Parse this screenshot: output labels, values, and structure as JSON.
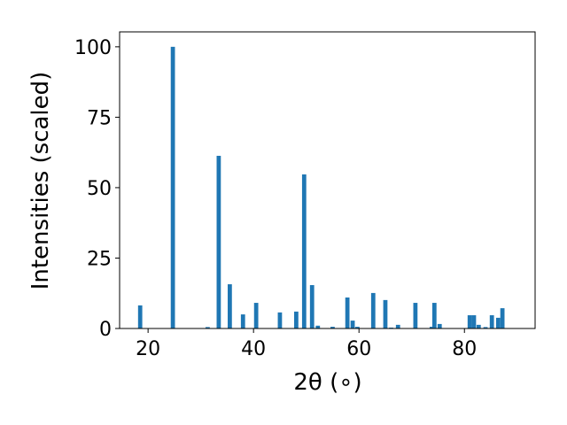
{
  "chart_data": {
    "type": "bar",
    "xlabel": "2θ (∘)",
    "ylabel": "Intensities (scaled)",
    "x": [
      18.5,
      24.7,
      31.3,
      33.4,
      35.5,
      38.0,
      40.5,
      45.0,
      48.1,
      49.6,
      51.1,
      52.2,
      55.0,
      57.8,
      58.8,
      59.7,
      62.7,
      65.0,
      66.1,
      67.4,
      70.7,
      73.8,
      74.3,
      75.3,
      81.0,
      81.8,
      82.7,
      84.0,
      85.2,
      86.4,
      87.2
    ],
    "values": [
      8.2,
      100,
      0.5,
      61.3,
      15.7,
      5.0,
      9.1,
      5.7,
      6.0,
      54.7,
      15.4,
      1.0,
      0.6,
      11.0,
      2.8,
      0.6,
      12.6,
      10.1,
      0.3,
      1.3,
      9.1,
      0.6,
      9.1,
      1.6,
      4.7,
      4.7,
      1.3,
      0.5,
      4.7,
      3.8,
      7.2
    ],
    "color": "#1f77b4",
    "xlim": [
      14.6,
      93.4
    ],
    "xticks": [
      20,
      40,
      60,
      80
    ],
    "ylim": [
      0,
      105.3
    ],
    "yticks": [
      0,
      25,
      50,
      75,
      100
    ],
    "grid": false
  }
}
